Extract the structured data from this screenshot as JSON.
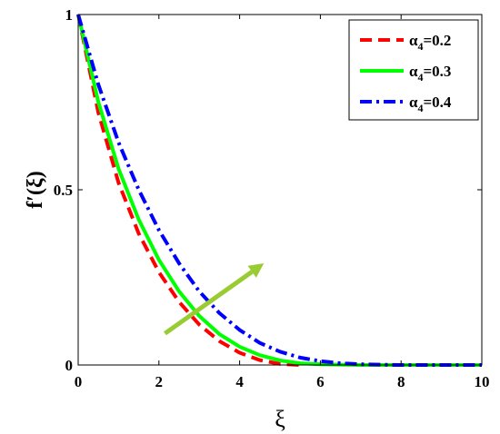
{
  "chart_data": {
    "type": "line",
    "xlabel": "ξ",
    "ylabel": "f′(ξ)",
    "xlim": [
      0,
      10
    ],
    "ylim": [
      0,
      1
    ],
    "xticks": [
      0,
      2,
      4,
      6,
      8,
      10
    ],
    "yticks": [
      0,
      0.5,
      1
    ],
    "ytick_labels": [
      "0",
      "0.5",
      "1"
    ],
    "grid": false,
    "legend_position": "top-right",
    "legend_prefix": "α",
    "legend_subscript": "4",
    "series": [
      {
        "name": "α4=0.2",
        "legend_value": "=0.2",
        "color": "#ff0000",
        "dash": "dashed",
        "x": [
          0,
          0.5,
          1,
          1.5,
          2,
          2.5,
          3,
          3.5,
          4,
          4.5,
          5,
          5.5
        ],
        "y": [
          1,
          0.72,
          0.52,
          0.375,
          0.265,
          0.18,
          0.115,
          0.068,
          0.035,
          0.014,
          0.003,
          0
        ]
      },
      {
        "name": "α4=0.3",
        "legend_value": "=0.3",
        "color": "#00ff00",
        "dash": "solid",
        "x": [
          0,
          0.5,
          1,
          1.5,
          2,
          2.5,
          3,
          3.5,
          4,
          4.5,
          5,
          5.5,
          6,
          6.5,
          7,
          8,
          9,
          10
        ],
        "y": [
          1,
          0.75,
          0.56,
          0.415,
          0.3,
          0.21,
          0.14,
          0.088,
          0.052,
          0.028,
          0.013,
          0.005,
          0.002,
          0.001,
          0,
          0,
          0,
          0
        ]
      },
      {
        "name": "α4=0.4",
        "legend_value": "=0.4",
        "color": "#0000ff",
        "dash": "dashdot",
        "x": [
          0,
          0.5,
          1,
          1.5,
          2,
          2.5,
          3,
          3.5,
          4,
          4.5,
          5,
          5.5,
          6,
          6.5,
          7,
          7.5,
          8,
          9,
          10
        ],
        "y": [
          1,
          0.8,
          0.635,
          0.5,
          0.385,
          0.29,
          0.21,
          0.148,
          0.1,
          0.063,
          0.038,
          0.021,
          0.011,
          0.005,
          0.002,
          0.001,
          0,
          0,
          0
        ]
      }
    ],
    "annotations": [
      {
        "type": "arrow",
        "color": "#99cc33",
        "from": [
          2.15,
          0.09
        ],
        "to": [
          4.6,
          0.29
        ]
      }
    ]
  }
}
